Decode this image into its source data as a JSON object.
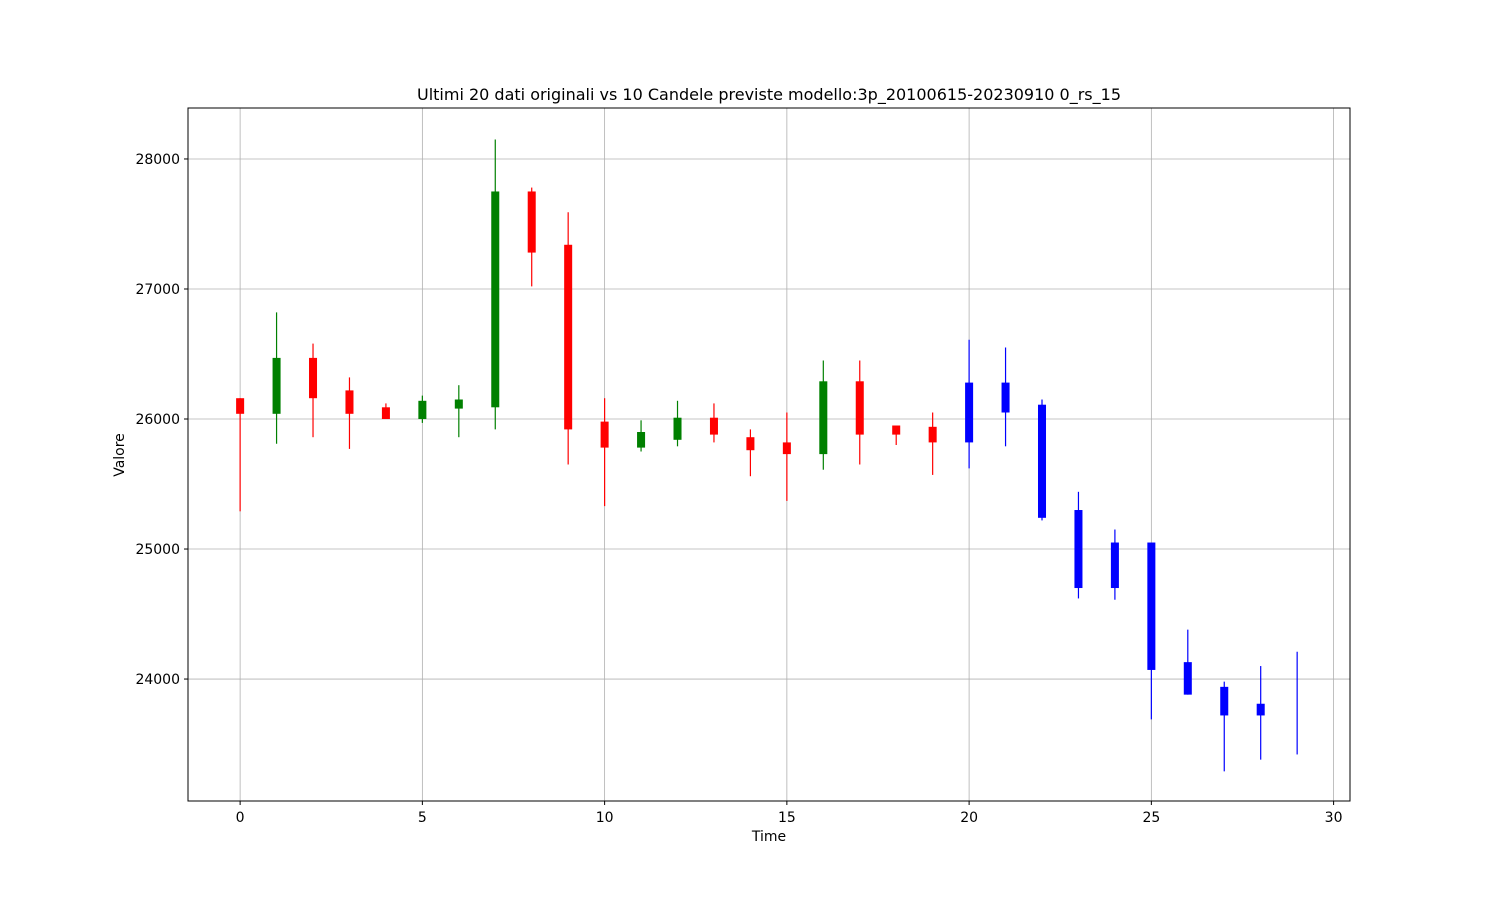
{
  "chart_data": {
    "type": "candlestick",
    "title": "Ultimi 20 dati originali vs 10 Candele previste modello:3p_20100615-20230910 0_rs_15",
    "x_label": "Time",
    "y_label": "Valore",
    "x": [
      0,
      1,
      2,
      3,
      4,
      5,
      6,
      7,
      8,
      9,
      10,
      11,
      12,
      13,
      14,
      15,
      16,
      17,
      18,
      19,
      20,
      21,
      22,
      23,
      24,
      25,
      26,
      27,
      28,
      29
    ],
    "open": [
      26160,
      26040,
      26470,
      26220,
      26090,
      26000,
      26080,
      26090,
      27750,
      27340,
      25980,
      25780,
      25840,
      26010,
      25860,
      25820,
      25730,
      26290,
      25950,
      25940,
      26280,
      26280,
      26110,
      25300,
      25050,
      25050,
      24130,
      23940,
      23810,
      23800
    ],
    "high": [
      26160,
      26820,
      26580,
      26320,
      26120,
      26180,
      26260,
      28150,
      27780,
      27590,
      26160,
      25990,
      26140,
      26120,
      25920,
      26050,
      26450,
      26450,
      25950,
      26050,
      26610,
      26550,
      26150,
      25440,
      25150,
      25050,
      24380,
      23980,
      24100,
      24210
    ],
    "low": [
      25290,
      25810,
      25860,
      25770,
      26000,
      25970,
      25860,
      25920,
      27020,
      25650,
      25330,
      25750,
      25790,
      25820,
      25560,
      25370,
      25610,
      25650,
      25800,
      25570,
      25620,
      25790,
      25220,
      24620,
      24610,
      23690,
      23880,
      23290,
      23380,
      23420
    ],
    "close": [
      26040,
      26470,
      26160,
      26040,
      26000,
      26140,
      26150,
      27750,
      27280,
      25920,
      25780,
      25900,
      26010,
      25880,
      25760,
      25730,
      26290,
      25880,
      25880,
      25820,
      25820,
      26050,
      25240,
      24700,
      24700,
      24070,
      23880,
      23720,
      23720,
      23800
    ],
    "colors": [
      "red",
      "green",
      "red",
      "red",
      "red",
      "green",
      "green",
      "green",
      "red",
      "red",
      "red",
      "green",
      "green",
      "red",
      "red",
      "red",
      "green",
      "red",
      "red",
      "red",
      "blue",
      "blue",
      "blue",
      "blue",
      "blue",
      "blue",
      "blue",
      "blue",
      "blue",
      "blue"
    ],
    "xlim": [
      -1.43,
      30.45
    ],
    "ylim": [
      23062,
      28392
    ],
    "xticks": [
      0,
      5,
      10,
      15,
      20,
      25,
      30
    ],
    "yticks": [
      24000,
      25000,
      26000,
      27000,
      28000
    ],
    "grid": true
  }
}
